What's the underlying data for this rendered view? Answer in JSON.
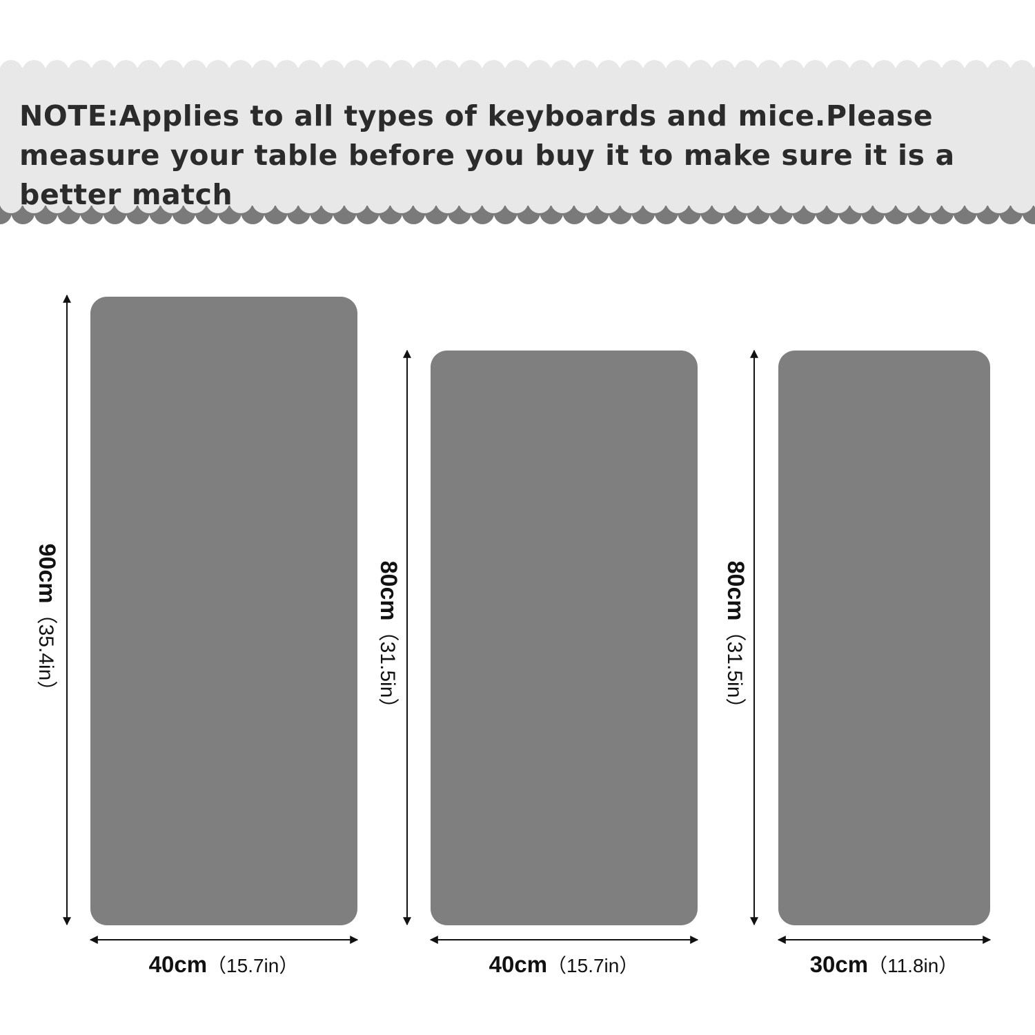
{
  "note": {
    "text": "NOTE:Applies to all types of keyboards and mice.Please measure your table before you buy it to make sure it is a better match"
  },
  "colors": {
    "band": "#e8e8e8",
    "scallop_dark": "#7a7a7a",
    "pad": "#7f7f7f",
    "text": "#2b2b2b"
  },
  "sizes": [
    {
      "length_cm": "90cm",
      "length_in": "（35.4in）",
      "width_cm": "40cm",
      "width_in": "（15.7in）"
    },
    {
      "length_cm": "80cm",
      "length_in": "（31.5in）",
      "width_cm": "40cm",
      "width_in": "（15.7in）"
    },
    {
      "length_cm": "80cm",
      "length_in": "（31.5in）",
      "width_cm": "30cm",
      "width_in": "（11.8in）"
    }
  ]
}
